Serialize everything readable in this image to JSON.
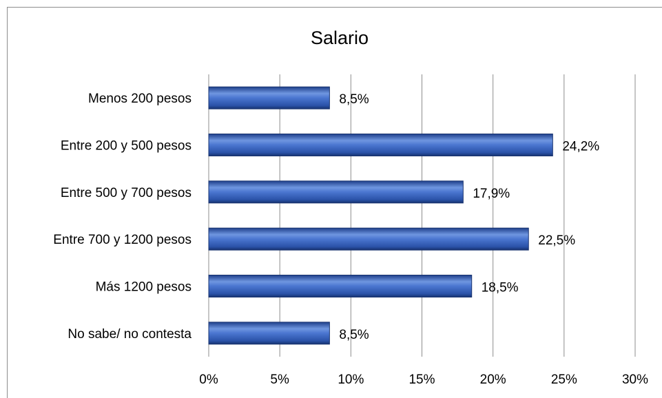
{
  "chart_data": {
    "type": "bar",
    "orientation": "horizontal",
    "title": "Salario",
    "categories": [
      "Menos 200 pesos",
      "Entre 200 y 500 pesos",
      "Entre 500 y 700 pesos",
      "Entre 700 y 1200 pesos",
      "Más 1200 pesos",
      "No sabe/ no contesta"
    ],
    "values": [
      8.5,
      24.2,
      17.9,
      22.5,
      18.5,
      8.5
    ],
    "value_labels": [
      "8,5%",
      "24,2%",
      "17,9%",
      "22,5%",
      "18,5%",
      "8,5%"
    ],
    "color": "#3a66c4",
    "xlim": [
      0,
      30
    ],
    "xticks": [
      {
        "value": 0,
        "label": "0%"
      },
      {
        "value": 5,
        "label": "5%"
      },
      {
        "value": 10,
        "label": "10%"
      },
      {
        "value": 15,
        "label": "15%"
      },
      {
        "value": 20,
        "label": "20%"
      },
      {
        "value": 25,
        "label": "25%"
      },
      {
        "value": 30,
        "label": "30%"
      }
    ],
    "grid": true
  }
}
